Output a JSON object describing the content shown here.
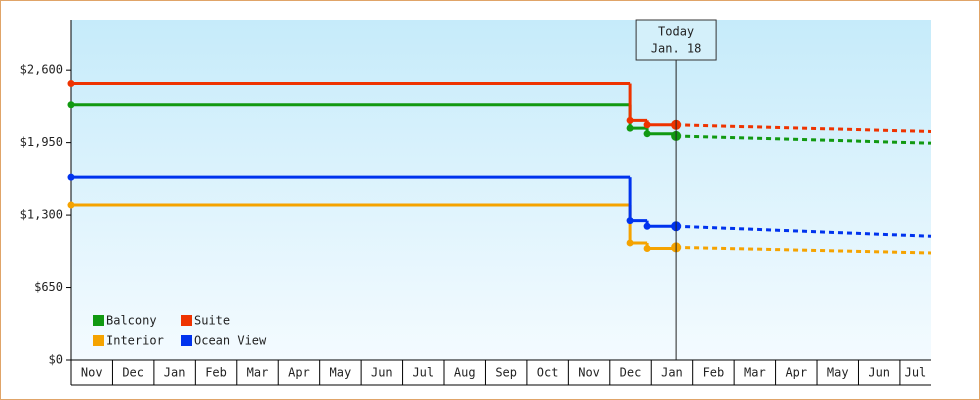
{
  "chart_data": {
    "type": "step-line",
    "categories": [
      "Nov",
      "Dec",
      "Jan",
      "Feb",
      "Mar",
      "Apr",
      "May",
      "Jun",
      "Jul",
      "Aug",
      "Sep",
      "Oct",
      "Nov",
      "Dec",
      "Jan",
      "Feb",
      "Mar",
      "Apr",
      "May",
      "Jun",
      "Jul"
    ],
    "xlim": [
      0,
      20.75
    ],
    "ylim": [
      0,
      3050
    ],
    "yticks": [
      {
        "value": 0,
        "label": "$0"
      },
      {
        "value": 650,
        "label": "$650"
      },
      {
        "value": 1300,
        "label": "$1,300"
      },
      {
        "value": 1950,
        "label": "$1,950"
      },
      {
        "value": 2600,
        "label": "$2,600"
      }
    ],
    "x": [
      0,
      13.49,
      13.9,
      14.6
    ],
    "forecast_x": [
      14.6,
      20.75
    ],
    "series": [
      {
        "name": "Balcony",
        "color": "#119911",
        "values": [
          2290,
          2080,
          2030,
          2010
        ],
        "forecast": [
          2010,
          1945
        ]
      },
      {
        "name": "Suite",
        "color": "#ee3300",
        "values": [
          2480,
          2150,
          2110,
          2110
        ],
        "forecast": [
          2110,
          2050
        ]
      },
      {
        "name": "Interior",
        "color": "#f5a300",
        "values": [
          1390,
          1050,
          1000,
          1010
        ],
        "forecast": [
          1010,
          960
        ]
      },
      {
        "name": "Ocean View",
        "color": "#0033ee",
        "values": [
          1640,
          1250,
          1200,
          1200
        ],
        "forecast": [
          1200,
          1110
        ]
      }
    ],
    "annotation": {
      "x": 14.6,
      "lines": [
        "Today",
        "Jan. 18"
      ]
    }
  }
}
